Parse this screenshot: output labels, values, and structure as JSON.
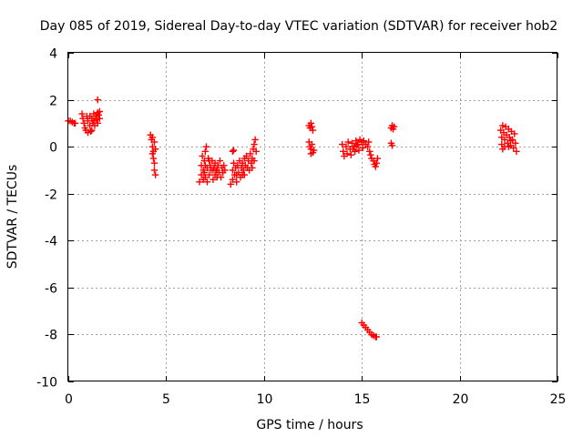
{
  "chart_data": {
    "type": "scatter",
    "title": "Day 085 of 2019, Sidereal Day-to-day VTEC variation (SDTVAR) for receiver hob2",
    "xlabel": "GPS time / hours",
    "ylabel": "SDTVAR / TECUs",
    "xlim": [
      0,
      25
    ],
    "ylim": [
      -10,
      4
    ],
    "xticks": [
      0,
      5,
      10,
      15,
      20,
      25
    ],
    "yticks": [
      -10,
      -8,
      -6,
      -4,
      -2,
      0,
      2,
      4
    ],
    "xtick_labels": [
      "0",
      "5",
      "10",
      "15",
      "20",
      "25"
    ],
    "ytick_labels": [
      "-10",
      "-8",
      "-6",
      "-4",
      "-2",
      "0",
      "2",
      "4"
    ],
    "grid": true,
    "marker": "plus",
    "marker_color": "#ff0000",
    "series": [
      {
        "name": "SDTVAR",
        "points": [
          [
            0.0,
            1.1
          ],
          [
            0.1,
            1.1
          ],
          [
            0.2,
            1.05
          ],
          [
            0.3,
            1.0
          ],
          [
            0.35,
            1.0
          ],
          [
            0.7,
            1.4
          ],
          [
            0.75,
            1.2
          ],
          [
            0.8,
            1.0
          ],
          [
            0.85,
            0.8
          ],
          [
            0.9,
            0.7
          ],
          [
            0.95,
            1.3
          ],
          [
            1.0,
            1.1
          ],
          [
            1.0,
            0.6
          ],
          [
            1.1,
            1.3
          ],
          [
            1.1,
            0.9
          ],
          [
            1.15,
            0.65
          ],
          [
            1.2,
            1.2
          ],
          [
            1.2,
            0.7
          ],
          [
            1.25,
            1.0
          ],
          [
            1.3,
            1.4
          ],
          [
            1.3,
            1.1
          ],
          [
            1.35,
            0.9
          ],
          [
            1.4,
            1.3
          ],
          [
            1.45,
            1.15
          ],
          [
            1.5,
            1.45
          ],
          [
            1.5,
            1.0
          ],
          [
            1.55,
            1.35
          ],
          [
            1.6,
            1.2
          ],
          [
            1.6,
            1.5
          ],
          [
            1.5,
            2.0
          ],
          [
            4.2,
            0.5
          ],
          [
            4.25,
            0.3
          ],
          [
            4.3,
            0.4
          ],
          [
            4.3,
            0.0
          ],
          [
            4.3,
            -0.3
          ],
          [
            4.35,
            -0.5
          ],
          [
            4.35,
            -0.2
          ],
          [
            4.4,
            -0.7
          ],
          [
            4.4,
            -1.0
          ],
          [
            4.45,
            -1.2
          ],
          [
            4.4,
            0.2
          ],
          [
            4.45,
            -0.1
          ],
          [
            6.7,
            -1.5
          ],
          [
            6.8,
            -1.2
          ],
          [
            6.8,
            -0.8
          ],
          [
            6.85,
            -0.4
          ],
          [
            6.9,
            -1.4
          ],
          [
            6.9,
            -1.0
          ],
          [
            6.95,
            -0.6
          ],
          [
            7.0,
            -0.2
          ],
          [
            7.0,
            -1.3
          ],
          [
            7.05,
            0.0
          ],
          [
            7.1,
            -0.9
          ],
          [
            7.1,
            -1.5
          ],
          [
            7.15,
            -0.5
          ],
          [
            7.2,
            -1.2
          ],
          [
            7.25,
            -0.8
          ],
          [
            7.3,
            -1.0
          ],
          [
            7.35,
            -0.6
          ],
          [
            7.4,
            -1.4
          ],
          [
            7.45,
            -0.9
          ],
          [
            7.5,
            -1.2
          ],
          [
            7.5,
            -0.7
          ],
          [
            7.55,
            -1.0
          ],
          [
            7.6,
            -1.3
          ],
          [
            7.65,
            -0.8
          ],
          [
            7.7,
            -1.1
          ],
          [
            7.75,
            -0.6
          ],
          [
            7.8,
            -1.3
          ],
          [
            7.85,
            -0.9
          ],
          [
            7.9,
            -1.1
          ],
          [
            7.95,
            -0.8
          ],
          [
            8.0,
            -1.0
          ],
          [
            7.4,
            -1.0
          ],
          [
            7.2,
            -0.6
          ],
          [
            7.0,
            -0.8
          ],
          [
            6.95,
            -1.1
          ],
          [
            7.6,
            -1.0
          ],
          [
            8.4,
            -0.2
          ],
          [
            8.45,
            -0.15
          ],
          [
            8.3,
            -1.6
          ],
          [
            8.4,
            -1.4
          ],
          [
            8.4,
            -1.0
          ],
          [
            8.45,
            -0.7
          ],
          [
            8.5,
            -1.2
          ],
          [
            8.55,
            -0.9
          ],
          [
            8.6,
            -1.5
          ],
          [
            8.65,
            -0.8
          ],
          [
            8.7,
            -1.1
          ],
          [
            8.75,
            -0.6
          ],
          [
            8.8,
            -1.3
          ],
          [
            8.85,
            -0.9
          ],
          [
            8.9,
            -0.7
          ],
          [
            8.95,
            -1.0
          ],
          [
            9.0,
            -0.5
          ],
          [
            9.0,
            -1.2
          ],
          [
            9.05,
            -0.8
          ],
          [
            9.1,
            -0.4
          ],
          [
            9.15,
            -0.9
          ],
          [
            9.2,
            -0.6
          ],
          [
            9.25,
            -1.0
          ],
          [
            9.3,
            -0.3
          ],
          [
            9.35,
            -0.7
          ],
          [
            9.4,
            -0.5
          ],
          [
            9.45,
            -0.1
          ],
          [
            9.5,
            0.1
          ],
          [
            9.55,
            0.3
          ],
          [
            9.6,
            -0.2
          ],
          [
            9.5,
            -0.6
          ],
          [
            9.4,
            -0.9
          ],
          [
            8.6,
            -1.2
          ],
          [
            8.9,
            -1.2
          ],
          [
            12.3,
            0.9
          ],
          [
            12.35,
            0.8
          ],
          [
            12.4,
            1.0
          ],
          [
            12.45,
            0.85
          ],
          [
            12.5,
            0.7
          ],
          [
            12.3,
            0.2
          ],
          [
            12.35,
            0.0
          ],
          [
            12.4,
            -0.1
          ],
          [
            12.45,
            0.1
          ],
          [
            12.5,
            -0.25
          ],
          [
            12.55,
            -0.15
          ],
          [
            12.4,
            -0.3
          ],
          [
            14.0,
            0.1
          ],
          [
            14.05,
            -0.2
          ],
          [
            14.1,
            -0.4
          ],
          [
            14.2,
            0.0
          ],
          [
            14.25,
            -0.3
          ],
          [
            14.3,
            0.2
          ],
          [
            14.4,
            -0.1
          ],
          [
            14.45,
            -0.35
          ],
          [
            14.5,
            0.15
          ],
          [
            14.6,
            0.0
          ],
          [
            14.65,
            -0.2
          ],
          [
            14.7,
            0.25
          ],
          [
            14.8,
            0.1
          ],
          [
            14.85,
            -0.15
          ],
          [
            14.9,
            0.3
          ],
          [
            15.0,
            0.2
          ],
          [
            15.05,
            -0.05
          ],
          [
            15.1,
            0.25
          ],
          [
            15.2,
            0.1
          ],
          [
            15.3,
            0.0
          ],
          [
            15.35,
            0.2
          ],
          [
            15.4,
            -0.2
          ],
          [
            15.45,
            -0.35
          ],
          [
            15.5,
            -0.5
          ],
          [
            15.6,
            -0.6
          ],
          [
            15.65,
            -0.75
          ],
          [
            15.7,
            -0.85
          ],
          [
            15.75,
            -0.7
          ],
          [
            15.8,
            -0.5
          ],
          [
            14.55,
            -0.1
          ],
          [
            14.75,
            0.05
          ],
          [
            15.0,
            -7.5
          ],
          [
            15.1,
            -7.6
          ],
          [
            15.2,
            -7.7
          ],
          [
            15.3,
            -7.8
          ],
          [
            15.4,
            -7.9
          ],
          [
            15.5,
            -8.0
          ],
          [
            15.6,
            -8.05
          ],
          [
            15.7,
            -8.1
          ],
          [
            15.75,
            -8.1
          ],
          [
            16.5,
            0.8
          ],
          [
            16.55,
            0.9
          ],
          [
            16.6,
            0.75
          ],
          [
            16.65,
            0.85
          ],
          [
            16.5,
            0.15
          ],
          [
            16.55,
            0.05
          ],
          [
            22.1,
            0.7
          ],
          [
            22.15,
            0.4
          ],
          [
            22.15,
            0.1
          ],
          [
            22.2,
            -0.1
          ],
          [
            22.2,
            0.9
          ],
          [
            22.25,
            0.6
          ],
          [
            22.3,
            0.3
          ],
          [
            22.35,
            0.85
          ],
          [
            22.4,
            0.5
          ],
          [
            22.45,
            0.15
          ],
          [
            22.5,
            0.75
          ],
          [
            22.55,
            0.4
          ],
          [
            22.6,
            0.05
          ],
          [
            22.65,
            0.65
          ],
          [
            22.7,
            0.3
          ],
          [
            22.75,
            -0.05
          ],
          [
            22.8,
            0.55
          ],
          [
            22.85,
            0.15
          ],
          [
            22.9,
            -0.2
          ],
          [
            22.5,
            0.0
          ],
          [
            22.3,
            0.0
          ],
          [
            22.6,
            0.25
          ]
        ]
      }
    ]
  }
}
